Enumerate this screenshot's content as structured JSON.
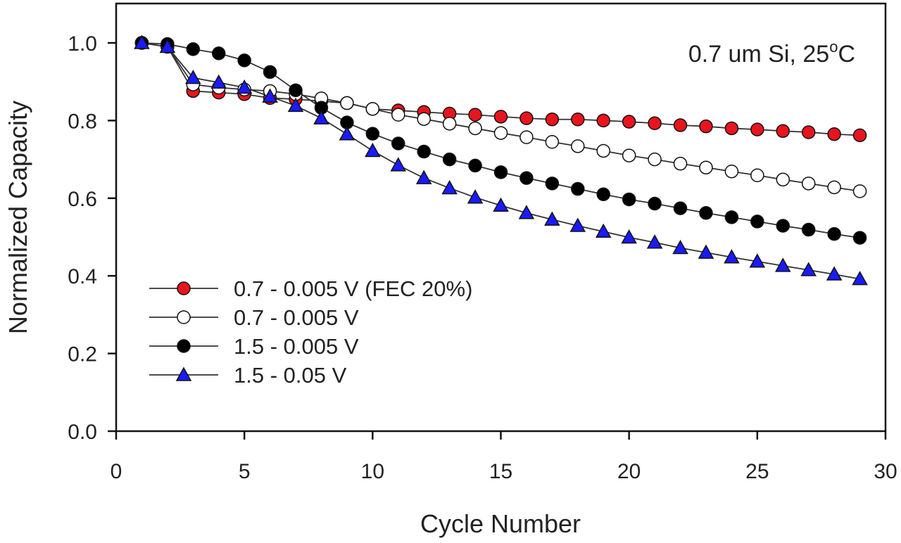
{
  "chart_data": {
    "type": "line",
    "title": "",
    "annotation": {
      "text": "0.7 um Si, 25",
      "superscript": "o",
      "suffix": "C"
    },
    "xlabel": "Cycle Number",
    "ylabel": "Normalized Capacity",
    "xlim": [
      0,
      30
    ],
    "ylim": [
      0,
      1.05
    ],
    "xticks": [
      0,
      5,
      10,
      15,
      20,
      25,
      30
    ],
    "yticks": [
      0.0,
      0.2,
      0.4,
      0.6,
      0.8,
      1.0
    ],
    "xtick_labels": [
      "0",
      "5",
      "10",
      "15",
      "20",
      "25",
      "30"
    ],
    "ytick_labels": [
      "0.0",
      "0.2",
      "0.4",
      "0.6",
      "0.8",
      "1.0"
    ],
    "grid": false,
    "legend_position": "bottom-left",
    "x": [
      1,
      2,
      3,
      4,
      5,
      6,
      7,
      8,
      9,
      10,
      11,
      12,
      13,
      14,
      15,
      16,
      17,
      18,
      19,
      20,
      21,
      22,
      23,
      24,
      25,
      26,
      27,
      28,
      29
    ],
    "series": [
      {
        "name": "0.7 - 0.005 V (FEC 20%)",
        "marker": "circle",
        "color": "#e8141e",
        "values": [
          1.0,
          0.99,
          0.876,
          0.872,
          0.868,
          0.858,
          0.855,
          0.85,
          0.845,
          0.83,
          0.826,
          0.822,
          0.818,
          0.815,
          0.81,
          0.806,
          0.803,
          0.803,
          0.8,
          0.797,
          0.793,
          0.788,
          0.785,
          0.78,
          0.777,
          0.773,
          0.77,
          0.765,
          0.762
        ]
      },
      {
        "name": "0.7 - 0.005 V",
        "marker": "circle",
        "color": "#ffffff",
        "values": [
          1.0,
          0.99,
          0.893,
          0.885,
          0.88,
          0.876,
          0.868,
          0.857,
          0.845,
          0.83,
          0.815,
          0.804,
          0.792,
          0.78,
          0.768,
          0.757,
          0.745,
          0.734,
          0.722,
          0.71,
          0.7,
          0.689,
          0.679,
          0.669,
          0.659,
          0.648,
          0.638,
          0.628,
          0.618
        ]
      },
      {
        "name": "1.5 - 0.005 V",
        "marker": "circle",
        "color": "#000000",
        "values": [
          1.0,
          0.997,
          0.984,
          0.973,
          0.955,
          0.925,
          0.878,
          0.833,
          0.795,
          0.766,
          0.741,
          0.72,
          0.7,
          0.684,
          0.667,
          0.652,
          0.638,
          0.624,
          0.61,
          0.597,
          0.586,
          0.574,
          0.562,
          0.551,
          0.54,
          0.529,
          0.519,
          0.508,
          0.498
        ]
      },
      {
        "name": "1.5 - 0.05 V",
        "marker": "triangle",
        "color": "#1a1aff",
        "values": [
          1.0,
          0.99,
          0.91,
          0.898,
          0.885,
          0.862,
          0.838,
          0.806,
          0.765,
          0.722,
          0.685,
          0.652,
          0.626,
          0.602,
          0.581,
          0.562,
          0.545,
          0.529,
          0.514,
          0.499,
          0.486,
          0.472,
          0.46,
          0.448,
          0.437,
          0.426,
          0.415,
          0.404,
          0.392
        ]
      }
    ]
  }
}
